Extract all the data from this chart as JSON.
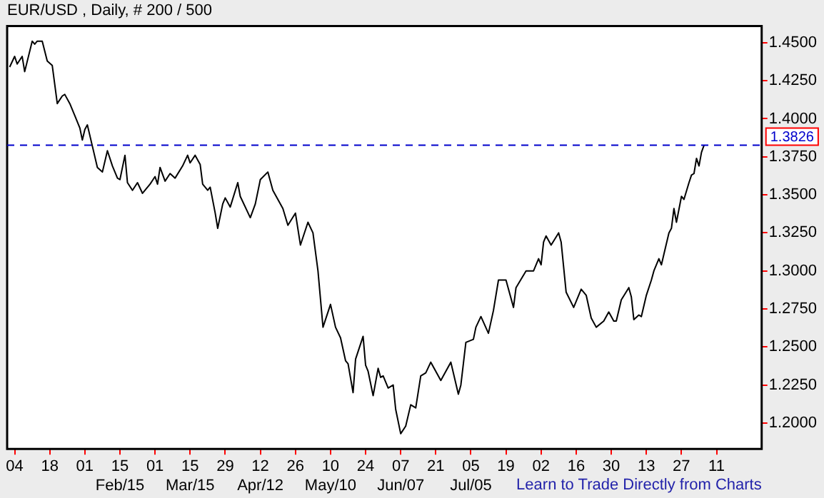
{
  "chart_data": {
    "type": "line",
    "title": "EUR/USD , Daily, # 200 / 500",
    "annotations": [
      "Learn to Trade Directly from Charts"
    ],
    "x": [
      "--01-02",
      "--01-04",
      "--01-05",
      "--01-07",
      "--01-08",
      "--01-11",
      "--01-12",
      "--01-13",
      "--01-15",
      "--01-17",
      "--01-19",
      "--01-21",
      "--01-23",
      "--01-24",
      "--01-26",
      "--01-28",
      "--01-30",
      "--01-31",
      "--02-01",
      "--02-02",
      "--02-04",
      "--02-06",
      "--02-08",
      "--02-10",
      "--02-12",
      "--02-14",
      "--02-15",
      "--02-17",
      "--02-18",
      "--02-20",
      "--02-22",
      "--02-24",
      "--02-27",
      "--03-01",
      "--03-02",
      "--03-03",
      "--03-05",
      "--03-07",
      "--03-09",
      "--03-12",
      "--03-14",
      "--03-15",
      "--03-17",
      "--03-19",
      "--03-20",
      "--03-22",
      "--03-23",
      "--03-25",
      "--03-26",
      "--03-28",
      "--03-29",
      "--03-31",
      "--04-03",
      "--04-04",
      "--04-08",
      "--04-10",
      "--04-12",
      "--04-15",
      "--04-17",
      "--04-21",
      "--04-23",
      "--04-26",
      "--04-28",
      "--05-01",
      "--05-03",
      "--05-05",
      "--05-07",
      "--05-10",
      "--05-12",
      "--05-14",
      "--05-16",
      "--05-17",
      "--05-19",
      "--05-20",
      "--05-23",
      "--05-24",
      "--05-25",
      "--05-27",
      "--05-29",
      "--05-30",
      "--05-31",
      "--06-02",
      "--06-04",
      "--06-05",
      "--06-07",
      "--06-09",
      "--06-11",
      "--06-13",
      "--06-15",
      "--06-17",
      "--06-19",
      "--06-23",
      "--06-27",
      "--06-30",
      "--07-01",
      "--07-03",
      "--07-06",
      "--07-07",
      "--07-09",
      "--07-12",
      "--07-14",
      "--07-16",
      "--07-19",
      "--07-22",
      "--07-23",
      "--07-27",
      "--07-30",
      "--08-01",
      "--08-02",
      "--08-03",
      "--08-04",
      "--08-06",
      "--08-09",
      "--08-10",
      "--08-12",
      "--08-15",
      "--08-18",
      "--08-20",
      "--08-22",
      "--08-24",
      "--08-27",
      "--08-29",
      "--08-31",
      "--09-01",
      "--09-03",
      "--09-06",
      "--09-07",
      "--09-08",
      "--09-10",
      "--09-11",
      "--09-13",
      "--09-15",
      "--09-16",
      "--09-18",
      "--09-19",
      "--09-20",
      "--09-22",
      "--09-23",
      "--09-24",
      "--09-25",
      "--09-27",
      "--09-28",
      "--09-30",
      "--10-01",
      "--10-02",
      "--10-03",
      "--10-04",
      "--10-05",
      "--10-06"
    ],
    "series": [
      {
        "color": "#000000",
        "values": [
          1.434,
          1.441,
          1.436,
          1.441,
          1.431,
          1.451,
          1.449,
          1.451,
          1.451,
          1.438,
          1.435,
          1.41,
          1.415,
          1.416,
          1.41,
          1.402,
          1.394,
          1.386,
          1.393,
          1.396,
          1.382,
          1.368,
          1.365,
          1.379,
          1.369,
          1.361,
          1.36,
          1.376,
          1.358,
          1.353,
          1.358,
          1.351,
          1.357,
          1.362,
          1.357,
          1.368,
          1.359,
          1.364,
          1.361,
          1.369,
          1.376,
          1.371,
          1.376,
          1.37,
          1.357,
          1.353,
          1.355,
          1.338,
          1.328,
          1.344,
          1.348,
          1.342,
          1.358,
          1.349,
          1.335,
          1.344,
          1.36,
          1.365,
          1.353,
          1.341,
          1.33,
          1.338,
          1.317,
          1.332,
          1.325,
          1.3,
          1.263,
          1.278,
          1.263,
          1.256,
          1.241,
          1.239,
          1.22,
          1.242,
          1.257,
          1.238,
          1.234,
          1.218,
          1.236,
          1.23,
          1.231,
          1.223,
          1.225,
          1.209,
          1.193,
          1.198,
          1.212,
          1.21,
          1.231,
          1.233,
          1.24,
          1.228,
          1.24,
          1.219,
          1.225,
          1.253,
          1.255,
          1.263,
          1.27,
          1.259,
          1.274,
          1.294,
          1.294,
          1.276,
          1.289,
          1.3,
          1.3,
          1.308,
          1.304,
          1.319,
          1.323,
          1.317,
          1.325,
          1.319,
          1.286,
          1.276,
          1.288,
          1.284,
          1.269,
          1.263,
          1.267,
          1.273,
          1.267,
          1.267,
          1.281,
          1.289,
          1.283,
          1.268,
          1.271,
          1.27,
          1.284,
          1.294,
          1.3,
          1.308,
          1.304,
          1.311,
          1.325,
          1.328,
          1.341,
          1.332,
          1.349,
          1.347,
          1.358,
          1.363,
          1.364,
          1.374,
          1.369,
          1.378,
          1.3826
        ]
      }
    ],
    "xlim": [
      "--01-01",
      "--10-29"
    ],
    "xticks": [
      {
        "value": "--01-04",
        "label": "04"
      },
      {
        "value": "--01-18",
        "label": "18"
      },
      {
        "value": "--02-01",
        "label": "01"
      },
      {
        "value": "--02-15",
        "label": "15\nFeb/15"
      },
      {
        "value": "--03-01",
        "label": "01"
      },
      {
        "value": "--03-15",
        "label": "15\nMar/15"
      },
      {
        "value": "--03-29",
        "label": "29"
      },
      {
        "value": "--04-12",
        "label": "12\nApr/12"
      },
      {
        "value": "--04-26",
        "label": "26"
      },
      {
        "value": "--05-10",
        "label": "10\nMay/10"
      },
      {
        "value": "--05-24",
        "label": "24"
      },
      {
        "value": "--06-07",
        "label": "07\nJun/07"
      },
      {
        "value": "--06-21",
        "label": "21"
      },
      {
        "value": "--07-05",
        "label": "05\nJul/05"
      },
      {
        "value": "--07-19",
        "label": "19"
      },
      {
        "value": "--08-02",
        "label": "02"
      },
      {
        "value": "--08-16",
        "label": "16"
      },
      {
        "value": "--08-30",
        "label": "30"
      },
      {
        "value": "--09-13",
        "label": "13"
      },
      {
        "value": "--09-27",
        "label": "27"
      },
      {
        "value": "--10-11",
        "label": "11"
      }
    ],
    "ylim": [
      1.183,
      1.461
    ],
    "yticks": [
      {
        "value": 1.2,
        "label": "1.2000"
      },
      {
        "value": 1.225,
        "label": "1.2250"
      },
      {
        "value": 1.25,
        "label": "1.2500"
      },
      {
        "value": 1.275,
        "label": "1.2750"
      },
      {
        "value": 1.3,
        "label": "1.3000"
      },
      {
        "value": 1.325,
        "label": "1.3250"
      },
      {
        "value": 1.35,
        "label": "1.3500"
      },
      {
        "value": 1.375,
        "label": "1.3750"
      },
      {
        "value": 1.4,
        "label": "1.4000"
      },
      {
        "value": 1.425,
        "label": "1.4250"
      },
      {
        "value": 1.45,
        "label": "1.4500"
      }
    ],
    "ref_lines": [
      {
        "axis": "y",
        "value": 1.3826,
        "label": "1.3826",
        "color": "#0000cc",
        "line_style": "dashed"
      }
    ],
    "marker": "none",
    "line_style": "solid",
    "legend": false
  }
}
